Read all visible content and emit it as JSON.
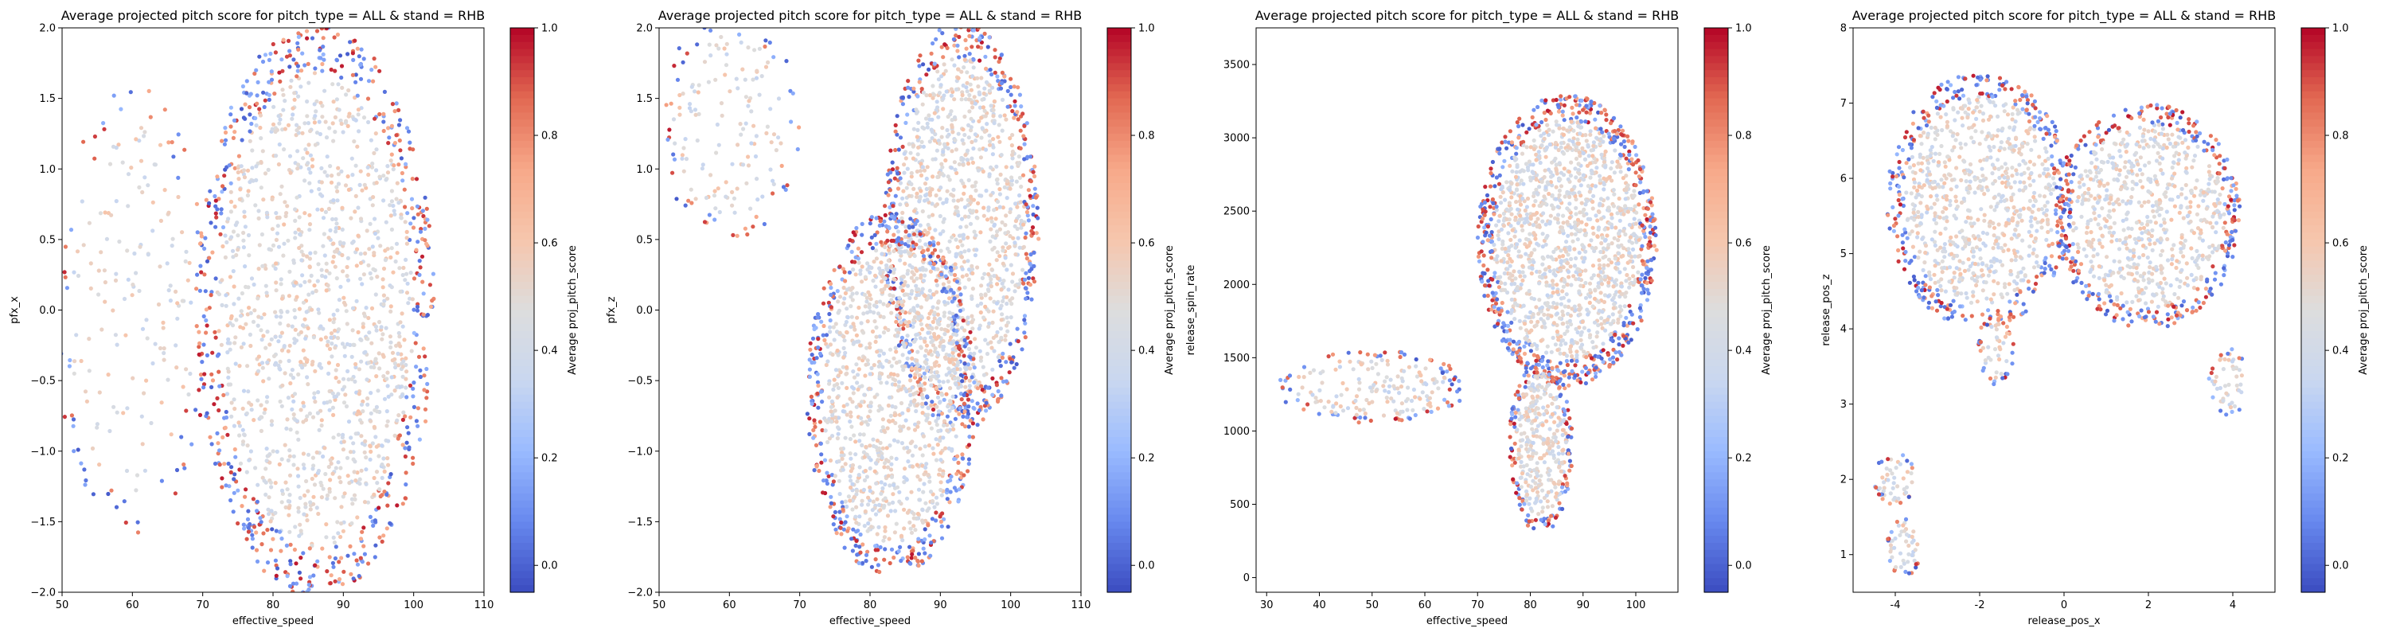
{
  "colorbar_label": "Average proj_pitch_score",
  "colormap": [
    "#3b4cc0",
    "#6788ee",
    "#9abbff",
    "#c9d7f0",
    "#dddddd",
    "#f6c6ad",
    "#f7a889",
    "#e26952",
    "#b40426"
  ],
  "chart_data": [
    {
      "type": "scatter",
      "title": "Average projected pitch score for pitch_type = ALL & stand = RHB",
      "xlabel": "effective_speed",
      "ylabel": "pfx_x",
      "xlim": [
        50,
        110
      ],
      "ylim": [
        -2.0,
        2.0
      ],
      "xticks": [
        50,
        60,
        70,
        80,
        90,
        100,
        110
      ],
      "yticks": [
        -2.0,
        -1.5,
        -1.0,
        -0.5,
        0.0,
        0.5,
        1.0,
        1.5,
        2.0
      ],
      "ytick_decimals": 1,
      "clim": [
        -0.05,
        1.0
      ],
      "cticks": [
        0.0,
        0.2,
        0.4,
        0.6,
        0.8,
        1.0
      ],
      "grid": false,
      "blobs": [
        {
          "cx": 86,
          "cy": 0.0,
          "rx": 17,
          "ry": 2.05,
          "weight": 1.0
        },
        {
          "cx": 60,
          "cy": 0.0,
          "rx": 11,
          "ry": 1.6,
          "weight": 0.12
        }
      ]
    },
    {
      "type": "scatter",
      "title": "Average projected pitch score for pitch_type = ALL & stand = RHB",
      "xlabel": "effective_speed",
      "ylabel": "pfx_z",
      "xlim": [
        50,
        110
      ],
      "ylim": [
        -2.0,
        2.0
      ],
      "xticks": [
        50,
        60,
        70,
        80,
        90,
        100,
        110
      ],
      "yticks": [
        -2.0,
        -1.5,
        -1.0,
        -0.5,
        0.0,
        0.5,
        1.0,
        1.5,
        2.0
      ],
      "ytick_decimals": 1,
      "clim": [
        -0.05,
        1.0
      ],
      "cticks": [
        0.0,
        0.2,
        0.4,
        0.6,
        0.8,
        1.0
      ],
      "grid": false,
      "blobs": [
        {
          "cx": 93,
          "cy": 0.6,
          "rx": 11,
          "ry": 1.45,
          "weight": 0.8
        },
        {
          "cx": 83,
          "cy": -0.6,
          "rx": 12,
          "ry": 1.3,
          "weight": 0.8
        },
        {
          "cx": 60,
          "cy": 1.3,
          "rx": 10,
          "ry": 0.8,
          "weight": 0.1
        }
      ]
    },
    {
      "type": "scatter",
      "title": "Average projected pitch score for pitch_type = ALL & stand = RHB",
      "xlabel": "effective_speed",
      "ylabel": "release_spin_rate",
      "xlim": [
        28,
        108
      ],
      "ylim": [
        -100,
        3750
      ],
      "xticks": [
        30,
        40,
        50,
        60,
        70,
        80,
        90,
        100
      ],
      "yticks": [
        0,
        500,
        1000,
        1500,
        2000,
        2500,
        3000,
        3500
      ],
      "ytick_decimals": 0,
      "clim": [
        -0.05,
        1.0
      ],
      "cticks": [
        0.0,
        0.2,
        0.4,
        0.6,
        0.8,
        1.0
      ],
      "grid": false,
      "blobs": [
        {
          "cx": 87,
          "cy": 2300,
          "rx": 17,
          "ry": 1000,
          "weight": 1.0
        },
        {
          "cx": 82,
          "cy": 900,
          "rx": 6,
          "ry": 600,
          "weight": 0.25
        },
        {
          "cx": 50,
          "cy": 1300,
          "rx": 18,
          "ry": 250,
          "weight": 0.12
        }
      ]
    },
    {
      "type": "scatter",
      "title": "Average projected pitch score for pitch_type = ALL & stand = RHB",
      "xlabel": "release_pos_x",
      "ylabel": "release_pos_z",
      "xlim": [
        -5.0,
        5.0
      ],
      "ylim": [
        0.5,
        8.0
      ],
      "xticks": [
        -4,
        -2,
        0,
        2,
        4
      ],
      "yticks": [
        1,
        2,
        3,
        4,
        5,
        6,
        7,
        8
      ],
      "ytick_decimals": 0,
      "clim": [
        -0.05,
        1.0
      ],
      "cticks": [
        0.0,
        0.2,
        0.4,
        0.6,
        0.8,
        1.0
      ],
      "grid": false,
      "blobs": [
        {
          "cx": -2.0,
          "cy": 5.7,
          "rx": 2.2,
          "ry": 1.7,
          "weight": 0.6
        },
        {
          "cx": 2.0,
          "cy": 5.5,
          "rx": 2.2,
          "ry": 1.5,
          "weight": 0.55
        },
        {
          "cx": -4.0,
          "cy": 2.0,
          "rx": 0.5,
          "ry": 0.35,
          "weight": 0.03
        },
        {
          "cx": -3.8,
          "cy": 1.1,
          "rx": 0.4,
          "ry": 0.4,
          "weight": 0.03
        },
        {
          "cx": -1.6,
          "cy": 3.7,
          "rx": 0.45,
          "ry": 0.45,
          "weight": 0.03
        },
        {
          "cx": 3.9,
          "cy": 3.3,
          "rx": 0.5,
          "ry": 0.45,
          "weight": 0.03
        }
      ]
    }
  ]
}
